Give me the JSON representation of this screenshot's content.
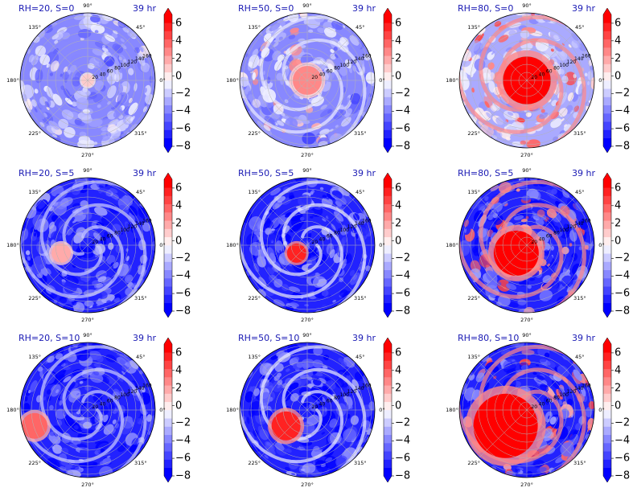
{
  "chart_data": {
    "type": "heatmap",
    "projection": "polar",
    "layout": {
      "rows": 3,
      "cols": 3
    },
    "time_label": "39 hr",
    "angular_ticks": [
      "0°",
      "45°",
      "90°",
      "135°",
      "180°",
      "225°",
      "270°",
      "315°"
    ],
    "radial_ticks": [
      "20",
      "40",
      "60",
      "80",
      "100",
      "120",
      "140",
      "160"
    ],
    "colorbar": {
      "ticks": [
        "6",
        "4",
        "2",
        "0",
        "−2",
        "−4",
        "−6",
        "−8"
      ],
      "range": [
        -8,
        7
      ],
      "levels": [
        -8,
        -7,
        -6,
        -5,
        -4,
        -3,
        -2,
        -1,
        0,
        1,
        2,
        3,
        4,
        5,
        6,
        7
      ],
      "colors": [
        "#0000ff",
        "#2222ff",
        "#4444ff",
        "#6666ff",
        "#8888ff",
        "#aaaaff",
        "#ccccff",
        "#eeeeff",
        "#ffeeee",
        "#ffcccc",
        "#ffaaaa",
        "#ff8888",
        "#ff6666",
        "#ff4444",
        "#ff2222",
        "#ff0000"
      ],
      "extend": "both"
    },
    "panels": [
      {
        "title": "RH=20, S=0",
        "rh": 20,
        "s": 0,
        "core": {
          "value": 1,
          "radius": 8
        },
        "field": "mostly weak negative, scattered"
      },
      {
        "title": "RH=50, S=0",
        "rh": 50,
        "s": 0,
        "core": {
          "value": 3,
          "radius": 18
        },
        "field": "weak negative with small positive core"
      },
      {
        "title": "RH=80, S=0",
        "rh": 80,
        "s": 0,
        "core": {
          "value": 7,
          "radius": 30
        },
        "field": "strong positive core with spiral bands"
      },
      {
        "title": "RH=20, S=5",
        "rh": 20,
        "s": 5,
        "core": {
          "value": 2,
          "radius": 12
        },
        "field": "strong negative with weak spiral"
      },
      {
        "title": "RH=50, S=5",
        "rh": 50,
        "s": 5,
        "core": {
          "value": 6,
          "radius": 12
        },
        "field": "negative rings with small displaced core"
      },
      {
        "title": "RH=80, S=5",
        "rh": 80,
        "s": 5,
        "core": {
          "value": 7,
          "radius": 28
        },
        "field": "strong positive core, spiral arm"
      },
      {
        "title": "RH=20, S=10",
        "rh": 20,
        "s": 10,
        "core": {
          "value": 4,
          "radius": 16
        },
        "field": "strong negative, displaced positive blob"
      },
      {
        "title": "RH=50, S=10",
        "rh": 50,
        "s": 10,
        "core": {
          "value": 6,
          "radius": 18
        },
        "field": "strong negative, sheared core"
      },
      {
        "title": "RH=80, S=10",
        "rh": 80,
        "s": 10,
        "core": {
          "value": 7,
          "radius": 40
        },
        "field": "large positive core with surrounding bands"
      }
    ]
  }
}
